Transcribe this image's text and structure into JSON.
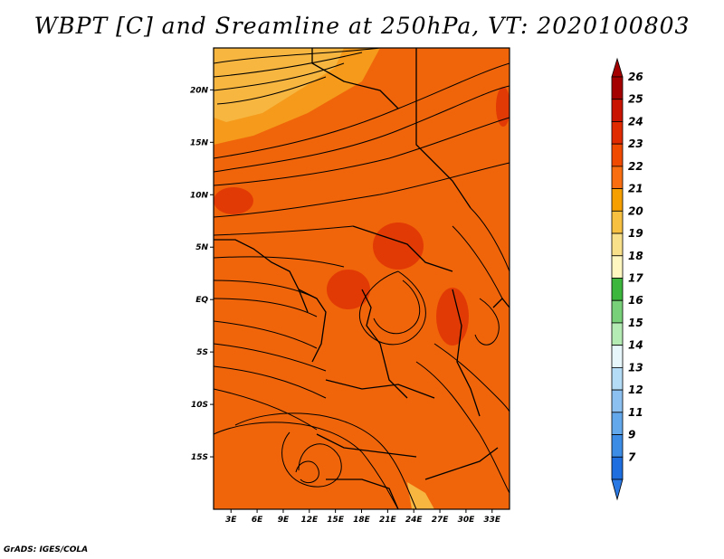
{
  "title": "WBPT [C] and Sreamline at 250hPa, VT: 2020100803",
  "credit": "GrADS: IGES/COLA",
  "map": {
    "lon_range": [
      1,
      35
    ],
    "lat_range": [
      -20,
      24
    ],
    "lat_ticks": [
      {
        "label": "20N",
        "lat": 20
      },
      {
        "label": "15N",
        "lat": 15
      },
      {
        "label": "10N",
        "lat": 10
      },
      {
        "label": "5N",
        "lat": 5
      },
      {
        "label": "EQ",
        "lat": 0
      },
      {
        "label": "5S",
        "lat": -5
      },
      {
        "label": "10S",
        "lat": -10
      },
      {
        "label": "15S",
        "lat": -15
      }
    ],
    "lon_ticks": [
      {
        "label": "3E",
        "lon": 3
      },
      {
        "label": "6E",
        "lon": 6
      },
      {
        "label": "9E",
        "lon": 9
      },
      {
        "label": "12E",
        "lon": 12
      },
      {
        "label": "15E",
        "lon": 15
      },
      {
        "label": "18E",
        "lon": 18
      },
      {
        "label": "21E",
        "lon": 21
      },
      {
        "label": "24E",
        "lon": 24
      },
      {
        "label": "27E",
        "lon": 27
      },
      {
        "label": "30E",
        "lon": 30
      },
      {
        "label": "33E",
        "lon": 33
      }
    ]
  },
  "colorbar": {
    "labels": [
      "26",
      "25",
      "24",
      "23",
      "22",
      "21",
      "20",
      "19",
      "18",
      "17",
      "16",
      "15",
      "14",
      "13",
      "12",
      "11",
      "9",
      "7"
    ],
    "colors": [
      "#a50000",
      "#c81400",
      "#e02a00",
      "#f04a00",
      "#f86e10",
      "#f5a000",
      "#f7c040",
      "#f8e08a",
      "#fff6c0",
      "#3cb63c",
      "#78d078",
      "#b4eab4",
      "#e6f6fa",
      "#b4dcf6",
      "#8cc0f0",
      "#64a8ec",
      "#3c8ce6",
      "#1e6ee0"
    ]
  }
}
